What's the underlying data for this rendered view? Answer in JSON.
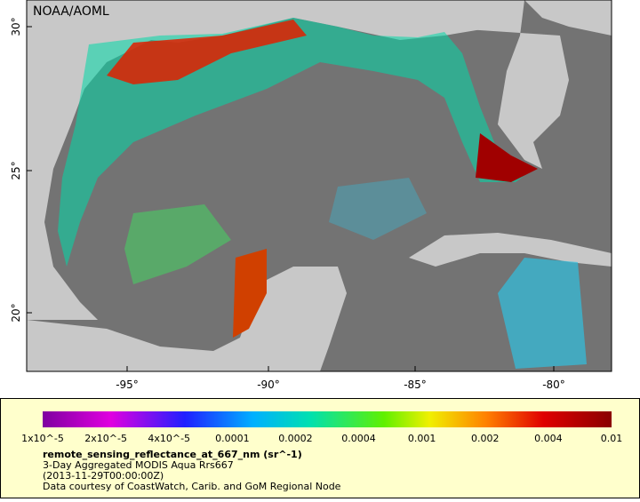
{
  "map": {
    "credit": "NOAA/AOML",
    "lat_labels": [
      "30°",
      "25°",
      "20°"
    ],
    "lon_labels": [
      "-95°",
      "-90°",
      "-85°",
      "-80°"
    ]
  },
  "legend": {
    "ticks": [
      "1x10^-5",
      "2x10^-5",
      "4x10^-5",
      "0.0001",
      "0.0002",
      "0.0004",
      "0.001",
      "0.002",
      "0.004",
      "0.01"
    ],
    "title": "remote_sensing_reflectance_at_667_nm (sr^-1)",
    "lines": [
      "3-Day Aggregated MODIS Aqua Rrs667",
      "(2013-11-29T00:00:00Z)",
      "Data courtesy of CoastWatch, Carib. and GoM Regional Node"
    ]
  }
}
